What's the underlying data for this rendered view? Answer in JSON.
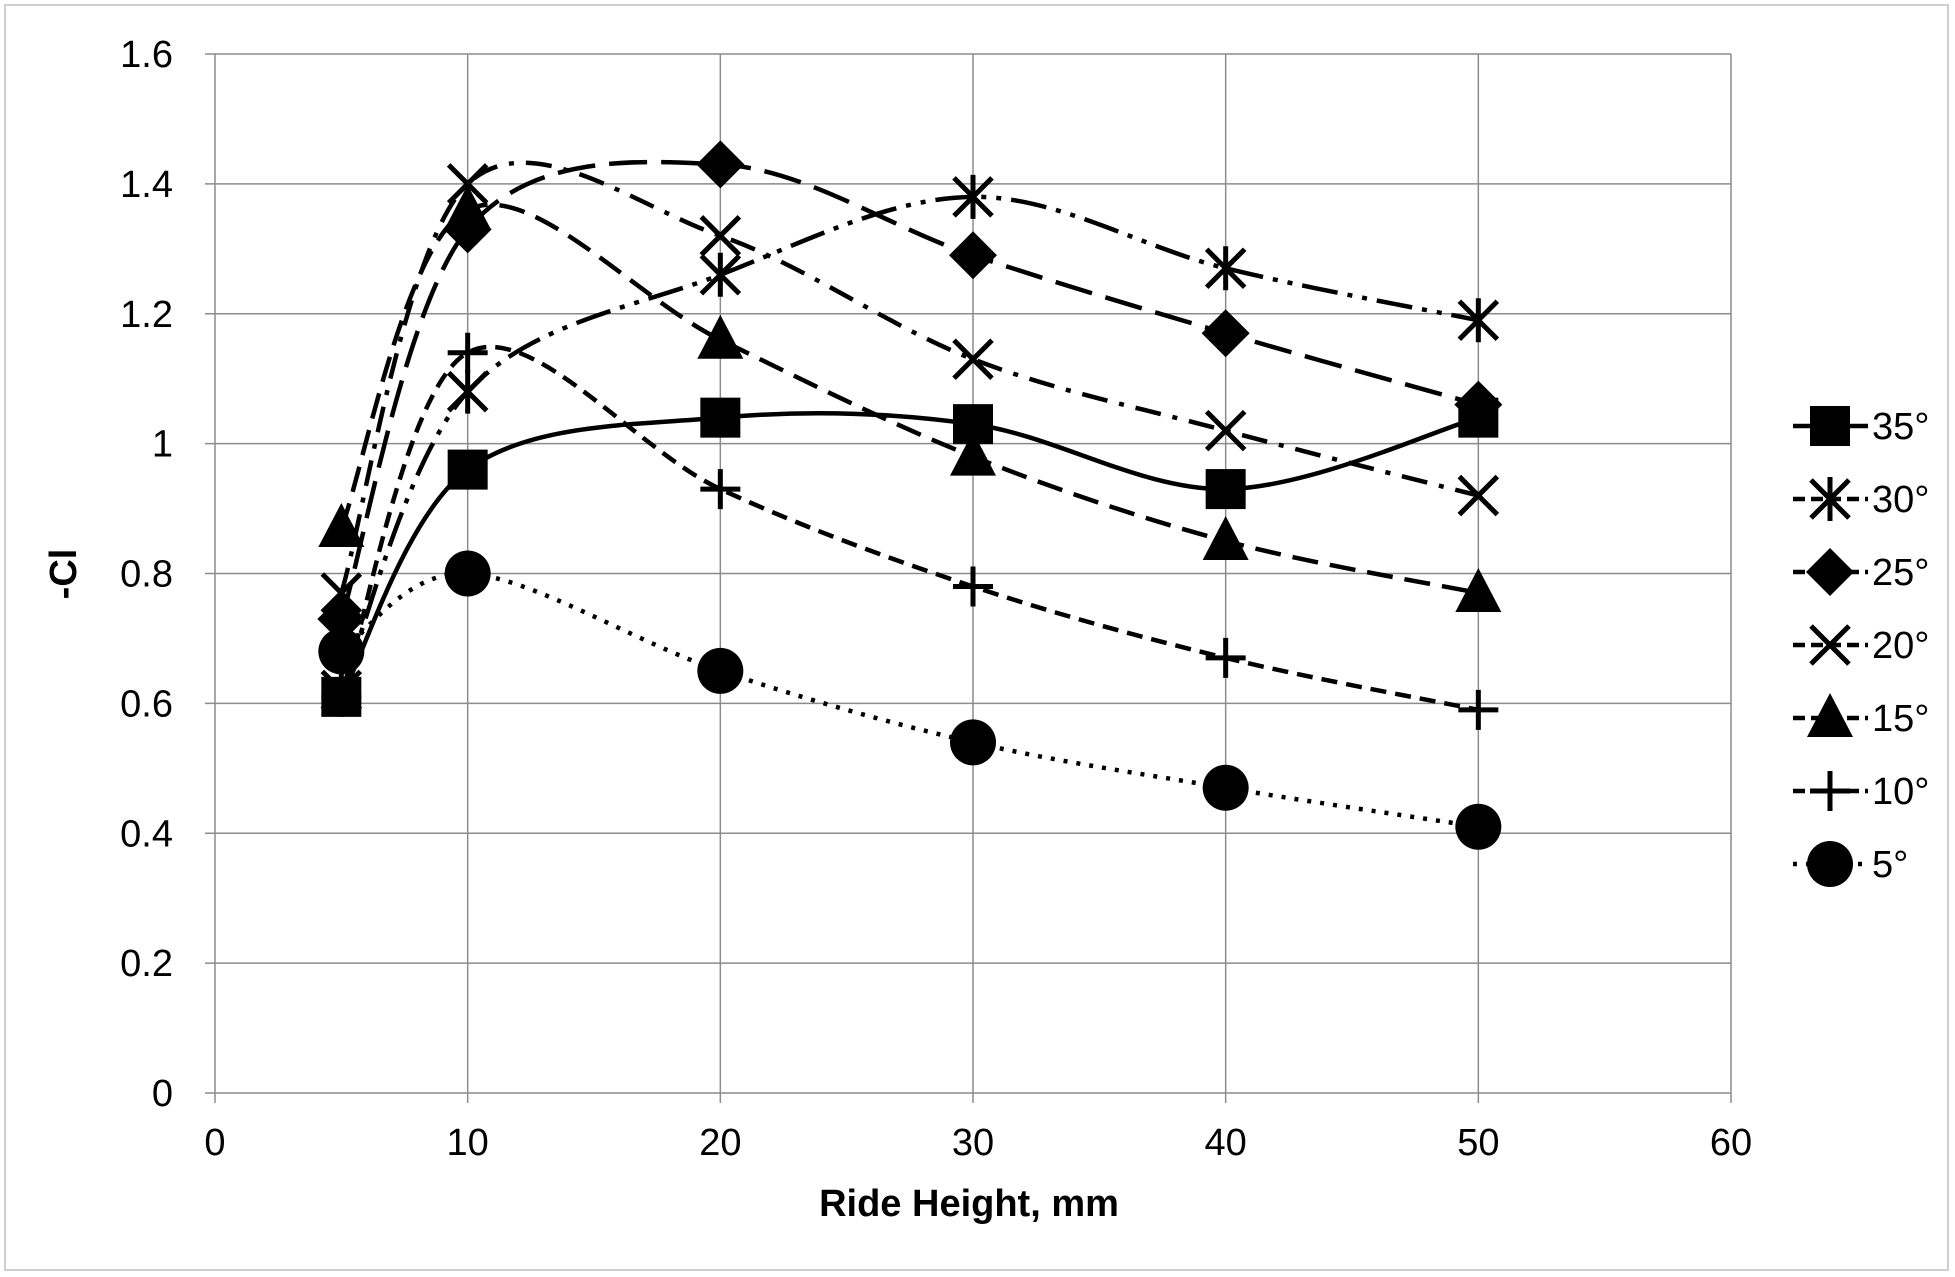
{
  "chart_data": {
    "type": "line",
    "xlabel": "Ride Height, mm",
    "ylabel": "-Cl",
    "xlim": [
      0,
      60
    ],
    "ylim": [
      0,
      1.6
    ],
    "xticks": [
      "0",
      "10",
      "20",
      "30",
      "40",
      "50",
      "60"
    ],
    "yticks": [
      "0",
      "0.2",
      "0.4",
      "0.6",
      "0.8",
      "1",
      "1.2",
      "1.4",
      "1.6"
    ],
    "grid": true,
    "legend_position": "right",
    "x": [
      5,
      10,
      20,
      30,
      40,
      50
    ],
    "series": [
      {
        "name": "35°",
        "marker": "square",
        "dash": "solid",
        "values": [
          0.61,
          0.96,
          1.04,
          1.03,
          0.93,
          1.04
        ]
      },
      {
        "name": "30°",
        "marker": "asterisk",
        "dash": "dash-dot-dot",
        "values": [
          0.62,
          1.08,
          1.26,
          1.38,
          1.27,
          1.19
        ]
      },
      {
        "name": "25°",
        "marker": "diamond",
        "dash": "long-dash",
        "values": [
          0.73,
          1.33,
          1.43,
          1.29,
          1.17,
          1.06
        ]
      },
      {
        "name": "20°",
        "marker": "x",
        "dash": "dash-dot",
        "values": [
          0.77,
          1.4,
          1.32,
          1.13,
          1.02,
          0.92
        ]
      },
      {
        "name": "15°",
        "marker": "triangle",
        "dash": "dash",
        "values": [
          0.87,
          1.36,
          1.16,
          0.98,
          0.85,
          0.77
        ]
      },
      {
        "name": "10°",
        "marker": "plus",
        "dash": "short-dash",
        "values": [
          0.61,
          1.14,
          0.93,
          0.78,
          0.67,
          0.59
        ]
      },
      {
        "name": "5°",
        "marker": "circle",
        "dash": "dot",
        "values": [
          0.68,
          0.8,
          0.65,
          0.54,
          0.47,
          0.41
        ]
      }
    ]
  }
}
